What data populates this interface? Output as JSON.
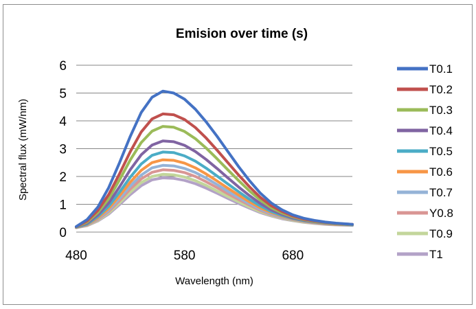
{
  "chart_data": {
    "type": "line",
    "title": "Emision over time (s)",
    "xlabel": "Wavelength (nm)",
    "ylabel": "Spectral flux (mW/nm)",
    "xlim": [
      480,
      735
    ],
    "ylim": [
      0,
      6
    ],
    "xticks": [
      480,
      580,
      680
    ],
    "yticks": [
      0,
      1,
      2,
      3,
      4,
      5,
      6
    ],
    "grid": "horizontal",
    "legend_position": "right",
    "x": [
      480,
      490,
      500,
      510,
      520,
      530,
      540,
      550,
      560,
      570,
      580,
      590,
      600,
      610,
      620,
      630,
      640,
      650,
      660,
      670,
      680,
      690,
      700,
      710,
      720,
      735
    ],
    "series": [
      {
        "name": "T0.1",
        "color": "#4472C4",
        "values": [
          0.2,
          0.45,
          0.9,
          1.6,
          2.5,
          3.45,
          4.3,
          4.85,
          5.07,
          5.0,
          4.78,
          4.42,
          3.96,
          3.45,
          2.9,
          2.35,
          1.85,
          1.4,
          1.05,
          0.8,
          0.62,
          0.5,
          0.42,
          0.36,
          0.32,
          0.28
        ]
      },
      {
        "name": "T0.2",
        "color": "#C0504D",
        "values": [
          0.19,
          0.4,
          0.78,
          1.35,
          2.1,
          2.9,
          3.6,
          4.07,
          4.25,
          4.22,
          4.05,
          3.76,
          3.38,
          2.95,
          2.5,
          2.05,
          1.63,
          1.25,
          0.95,
          0.74,
          0.58,
          0.47,
          0.4,
          0.35,
          0.31,
          0.28
        ]
      },
      {
        "name": "T0.3",
        "color": "#9BBB59",
        "values": [
          0.18,
          0.36,
          0.7,
          1.2,
          1.88,
          2.6,
          3.22,
          3.63,
          3.8,
          3.77,
          3.62,
          3.36,
          3.02,
          2.64,
          2.24,
          1.85,
          1.48,
          1.15,
          0.88,
          0.69,
          0.55,
          0.45,
          0.38,
          0.34,
          0.3,
          0.27
        ]
      },
      {
        "name": "T0.4",
        "color": "#8064A2",
        "values": [
          0.18,
          0.32,
          0.62,
          1.05,
          1.63,
          2.25,
          2.78,
          3.13,
          3.28,
          3.25,
          3.12,
          2.9,
          2.61,
          2.29,
          1.95,
          1.62,
          1.31,
          1.03,
          0.8,
          0.64,
          0.51,
          0.43,
          0.37,
          0.33,
          0.3,
          0.27
        ]
      },
      {
        "name": "T0.5",
        "color": "#4BACC6",
        "values": [
          0.17,
          0.29,
          0.56,
          0.93,
          1.44,
          1.98,
          2.45,
          2.76,
          2.88,
          2.86,
          2.74,
          2.55,
          2.3,
          2.02,
          1.73,
          1.45,
          1.18,
          0.94,
          0.74,
          0.6,
          0.49,
          0.41,
          0.36,
          0.32,
          0.29,
          0.26
        ]
      },
      {
        "name": "T0.6",
        "color": "#F79646",
        "values": [
          0.17,
          0.27,
          0.51,
          0.85,
          1.31,
          1.8,
          2.22,
          2.5,
          2.6,
          2.58,
          2.48,
          2.31,
          2.09,
          1.84,
          1.58,
          1.33,
          1.09,
          0.87,
          0.7,
          0.57,
          0.47,
          0.4,
          0.35,
          0.31,
          0.28,
          0.26
        ]
      },
      {
        "name": "T0.7",
        "color": "#95B3D7",
        "values": [
          0.17,
          0.26,
          0.48,
          0.79,
          1.21,
          1.66,
          2.05,
          2.31,
          2.4,
          2.38,
          2.29,
          2.14,
          1.94,
          1.71,
          1.47,
          1.24,
          1.02,
          0.82,
          0.66,
          0.54,
          0.45,
          0.39,
          0.34,
          0.31,
          0.28,
          0.25
        ]
      },
      {
        "name": "Y0.8",
        "color": "#D99694",
        "values": [
          0.16,
          0.25,
          0.45,
          0.74,
          1.13,
          1.55,
          1.91,
          2.15,
          2.24,
          2.22,
          2.14,
          2.0,
          1.81,
          1.6,
          1.38,
          1.17,
          0.97,
          0.78,
          0.63,
          0.52,
          0.44,
          0.38,
          0.33,
          0.3,
          0.27,
          0.25
        ]
      },
      {
        "name": "T0.9",
        "color": "#C3D69B",
        "values": [
          0.16,
          0.24,
          0.42,
          0.69,
          1.05,
          1.44,
          1.78,
          2.0,
          2.08,
          2.06,
          1.98,
          1.85,
          1.68,
          1.48,
          1.28,
          1.09,
          0.9,
          0.73,
          0.6,
          0.5,
          0.42,
          0.36,
          0.32,
          0.29,
          0.27,
          0.25
        ]
      },
      {
        "name": "T1",
        "color": "#B3A2C7",
        "values": [
          0.16,
          0.23,
          0.4,
          0.65,
          0.99,
          1.35,
          1.67,
          1.88,
          1.95,
          1.93,
          1.86,
          1.74,
          1.58,
          1.4,
          1.21,
          1.03,
          0.86,
          0.7,
          0.58,
          0.48,
          0.41,
          0.35,
          0.31,
          0.28,
          0.26,
          0.24
        ]
      }
    ]
  }
}
